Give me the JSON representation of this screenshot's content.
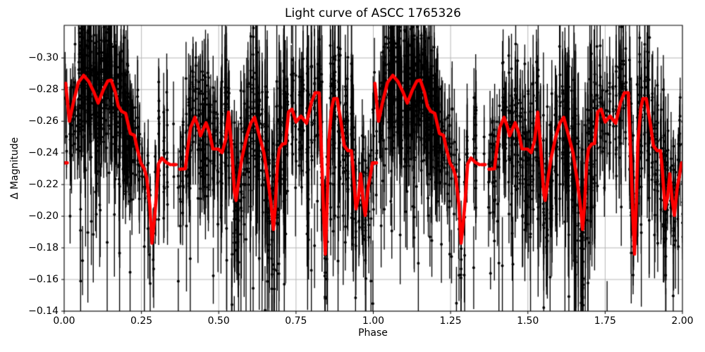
{
  "chart_data": {
    "type": "scatter",
    "title": "Light curve of ASCC 1765326",
    "xlabel": "Phase",
    "ylabel": "Δ Magnitude",
    "xlim": [
      0.0,
      2.0
    ],
    "ylim_top_to_bottom": [
      -0.3206,
      -0.14
    ],
    "y_axis_direction": "magnitude increases downward, ticks -0.30 (top) to -0.14 (bottom)",
    "grid": true,
    "x_ticks": {
      "values": [
        0.0,
        0.25,
        0.5,
        0.75,
        1.0,
        1.25,
        1.5,
        1.75,
        2.0
      ],
      "labels": [
        "0.00",
        "0.25",
        "0.50",
        "0.75",
        "1.00",
        "1.25",
        "1.50",
        "1.75",
        "2.00"
      ]
    },
    "y_ticks": {
      "values": [
        -0.3,
        -0.28,
        -0.26,
        -0.24,
        -0.22,
        -0.2,
        -0.18,
        -0.16,
        -0.14
      ],
      "labels": [
        "−0.30",
        "−0.28",
        "−0.26",
        "−0.24",
        "−0.22",
        "−0.20",
        "−0.18",
        "−0.16",
        "−0.14"
      ]
    },
    "colors": {
      "background": "#ffffff",
      "grid": "#b0b0b0",
      "spine": "#000000",
      "text": "#000000",
      "points": "#000000",
      "smoothed_line": "#ff0000"
    },
    "series": [
      {
        "name": "observations",
        "type": "scatter-errorbar",
        "color": "#000000",
        "marker_radius": 2.0,
        "errorbar_line_width": 1.35,
        "description": "Several thousand photometric points with vertical error bars, plotted twice (phase 0-1 duplicated at 1-2), scattered around the smoothed curve",
        "generator": {
          "seed": 20,
          "column_shift_sigma": 0.006,
          "outlier_prob": 0.045,
          "outlier_faint_shift": [
            0.03,
            0.09
          ],
          "density_segments": [
            [
              0.0,
              0.012,
              2,
              2,
              5,
              0.015,
              0.01,
              0.03
            ],
            [
              0.015,
              0.045,
              5,
              4,
              10,
              0.016,
              0.01,
              0.03
            ],
            [
              0.045,
              0.215,
              30,
              12,
              28,
              0.02,
              0.01,
              0.035
            ],
            [
              0.215,
              0.255,
              6,
              5,
              12,
              0.018,
              0.01,
              0.03
            ],
            [
              0.255,
              0.3,
              5,
              3,
              8,
              0.016,
              0.01,
              0.035
            ],
            [
              0.3,
              0.345,
              3,
              6,
              14,
              0.018,
              0.012,
              0.04
            ],
            [
              0.345,
              0.375,
              2,
              2,
              4,
              0.012,
              0.01,
              0.03
            ],
            [
              0.375,
              0.435,
              8,
              6,
              16,
              0.018,
              0.01,
              0.03
            ],
            [
              0.435,
              0.5,
              9,
              8,
              20,
              0.02,
              0.01,
              0.035
            ],
            [
              0.5,
              0.6,
              13,
              8,
              22,
              0.02,
              0.012,
              0.04
            ],
            [
              0.6,
              0.72,
              16,
              12,
              30,
              0.022,
              0.015,
              0.055
            ],
            [
              0.72,
              0.78,
              7,
              5,
              12,
              0.018,
              0.01,
              0.035
            ],
            [
              0.78,
              0.95,
              20,
              10,
              26,
              0.02,
              0.012,
              0.04
            ],
            [
              0.95,
              1.005,
              7,
              5,
              14,
              0.018,
              0.01,
              0.035
            ]
          ]
        }
      },
      {
        "name": "smoothed light curve",
        "type": "line",
        "color": "#ff0000",
        "line_width": 4.6,
        "phase_repeat_offsets": [
          0,
          1
        ],
        "segments": [
          [
            [
              0.0,
              -0.2337
            ],
            [
              0.01,
              -0.2337
            ]
          ],
          [
            [
              0.005,
              -0.284
            ],
            [
              0.017,
              -0.26
            ],
            [
              0.03,
              -0.272
            ],
            [
              0.046,
              -0.2845
            ],
            [
              0.063,
              -0.289
            ],
            [
              0.08,
              -0.285
            ],
            [
              0.096,
              -0.2785
            ],
            [
              0.11,
              -0.2715
            ],
            [
              0.127,
              -0.28
            ],
            [
              0.141,
              -0.2855
            ],
            [
              0.152,
              -0.286
            ],
            [
              0.166,
              -0.278
            ],
            [
              0.175,
              -0.2697
            ],
            [
              0.186,
              -0.2662
            ],
            [
              0.199,
              -0.265
            ],
            [
              0.206,
              -0.259
            ],
            [
              0.214,
              -0.2523
            ],
            [
              0.227,
              -0.2512
            ],
            [
              0.236,
              -0.243
            ],
            [
              0.248,
              -0.2337
            ],
            [
              0.259,
              -0.23
            ],
            [
              0.267,
              -0.2245
            ],
            [
              0.277,
              -0.207
            ],
            [
              0.284,
              -0.183
            ],
            [
              0.291,
              -0.196
            ],
            [
              0.298,
              -0.212
            ],
            [
              0.305,
              -0.233
            ],
            [
              0.316,
              -0.2368
            ],
            [
              0.33,
              -0.234
            ],
            [
              0.343,
              -0.2326
            ]
          ],
          [
            [
              0.35,
              -0.2326
            ],
            [
              0.362,
              -0.2326
            ]
          ],
          [
            [
              0.374,
              -0.2297
            ],
            [
              0.392,
              -0.23
            ],
            [
              0.4,
              -0.243
            ],
            [
              0.409,
              -0.256
            ],
            [
              0.423,
              -0.2625
            ],
            [
              0.433,
              -0.257
            ],
            [
              0.441,
              -0.2508
            ],
            [
              0.45,
              -0.255
            ],
            [
              0.459,
              -0.259
            ],
            [
              0.47,
              -0.253
            ],
            [
              0.481,
              -0.2425
            ],
            [
              0.499,
              -0.2424
            ],
            [
              0.511,
              -0.2402
            ],
            [
              0.522,
              -0.248
            ],
            [
              0.532,
              -0.2658
            ],
            [
              0.541,
              -0.245
            ],
            [
              0.551,
              -0.215
            ],
            [
              0.556,
              -0.21
            ],
            [
              0.566,
              -0.225
            ],
            [
              0.575,
              -0.2367
            ],
            [
              0.59,
              -0.25
            ],
            [
              0.604,
              -0.259
            ],
            [
              0.616,
              -0.2625
            ],
            [
              0.63,
              -0.252
            ],
            [
              0.646,
              -0.24
            ],
            [
              0.66,
              -0.222
            ],
            [
              0.669,
              -0.208
            ],
            [
              0.677,
              -0.1916
            ],
            [
              0.683,
              -0.206
            ],
            [
              0.69,
              -0.233
            ],
            [
              0.696,
              -0.2425
            ],
            [
              0.706,
              -0.2455
            ],
            [
              0.716,
              -0.246
            ],
            [
              0.726,
              -0.266
            ],
            [
              0.737,
              -0.2676
            ],
            [
              0.75,
              -0.2595
            ],
            [
              0.766,
              -0.2632
            ],
            [
              0.784,
              -0.2587
            ],
            [
              0.8,
              -0.272
            ],
            [
              0.812,
              -0.278
            ],
            [
              0.825,
              -0.278
            ],
            [
              0.833,
              -0.237
            ],
            [
              0.84,
              -0.198
            ],
            [
              0.845,
              -0.176
            ],
            [
              0.851,
              -0.21
            ],
            [
              0.856,
              -0.247
            ],
            [
              0.865,
              -0.268
            ],
            [
              0.872,
              -0.2743
            ],
            [
              0.883,
              -0.2743
            ],
            [
              0.895,
              -0.26
            ],
            [
              0.906,
              -0.2446
            ],
            [
              0.918,
              -0.2414
            ],
            [
              0.929,
              -0.2414
            ],
            [
              0.934,
              -0.2313
            ],
            [
              0.944,
              -0.2046
            ],
            [
              0.952,
              -0.212
            ],
            [
              0.959,
              -0.2268
            ],
            [
              0.967,
              -0.21
            ],
            [
              0.974,
              -0.2005
            ],
            [
              0.983,
              -0.218
            ],
            [
              0.99,
              -0.2254
            ],
            [
              0.997,
              -0.2337
            ],
            [
              1.01,
              -0.2337
            ]
          ]
        ]
      }
    ]
  }
}
